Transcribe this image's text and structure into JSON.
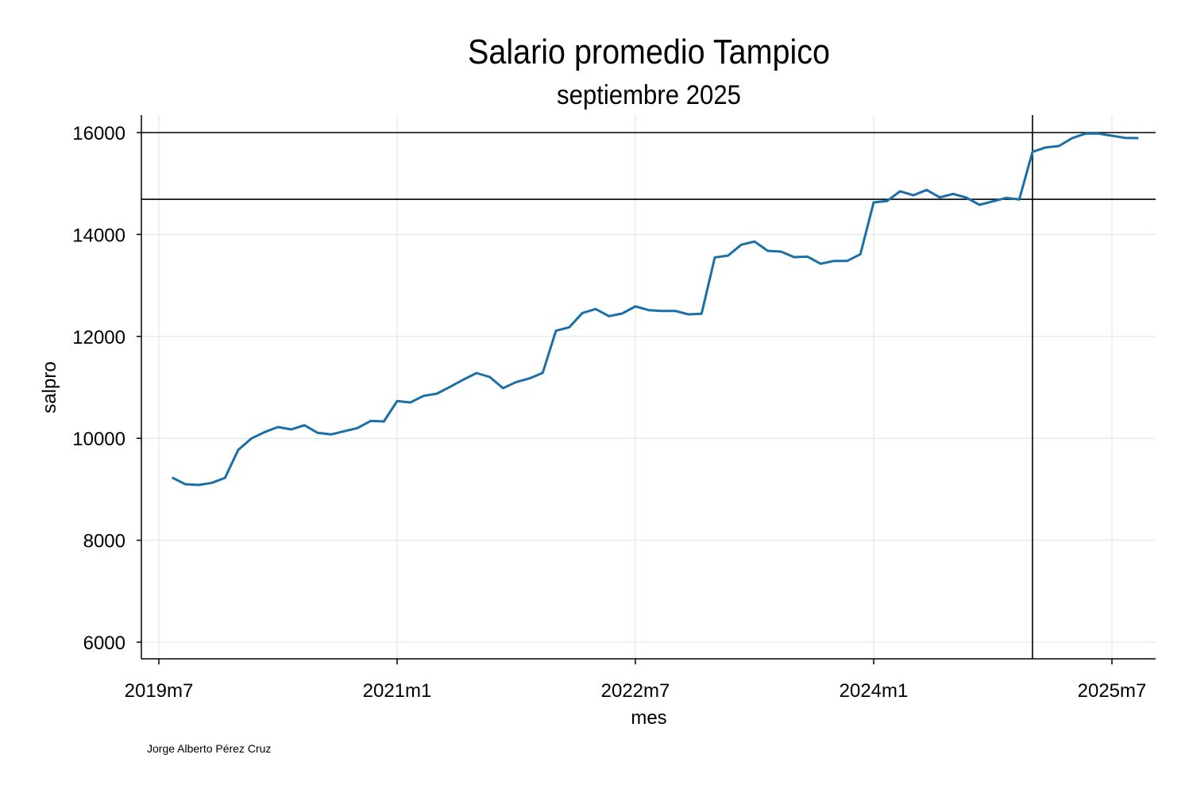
{
  "chart_data": {
    "type": "line",
    "title": "Salario promedio Tampico",
    "subtitle": "septiembre 2025",
    "xlabel": "mes",
    "ylabel": "salpro",
    "note": "Jorge Alberto Pérez Cruz",
    "x_start": "2019m8",
    "x_ticks": [
      "2019m7",
      "2021m1",
      "2022m7",
      "2024m1",
      "2025m7"
    ],
    "y_ticks": [
      6000,
      8000,
      10000,
      12000,
      14000,
      16000
    ],
    "ylim": [
      5700,
      16350
    ],
    "grid": true,
    "line_color": "#1a6fa8",
    "reference_lines": {
      "horizontal": [
        16000,
        14690
      ],
      "vertical": [
        "2025m1"
      ]
    },
    "series": [
      {
        "x": [
          "2019m8",
          "2019m9",
          "2019m10",
          "2019m11",
          "2019m12",
          "2020m1",
          "2020m2",
          "2020m3",
          "2020m4",
          "2020m5",
          "2020m6",
          "2020m7",
          "2020m8",
          "2020m9",
          "2020m10",
          "2020m11",
          "2020m12",
          "2021m1",
          "2021m2",
          "2021m3",
          "2021m4",
          "2021m5",
          "2021m6",
          "2021m7",
          "2021m8",
          "2021m9",
          "2021m10",
          "2021m11",
          "2021m12",
          "2022m1",
          "2022m2",
          "2022m3",
          "2022m4",
          "2022m5",
          "2022m6",
          "2022m7",
          "2022m8",
          "2022m9",
          "2022m10",
          "2022m11",
          "2022m12",
          "2023m1",
          "2023m2",
          "2023m3",
          "2023m4",
          "2023m5",
          "2023m6",
          "2023m7",
          "2023m8",
          "2023m9",
          "2023m10",
          "2023m11",
          "2023m12",
          "2024m1",
          "2024m2",
          "2024m3",
          "2024m4",
          "2024m5",
          "2024m6",
          "2024m7",
          "2024m8",
          "2024m9",
          "2024m10",
          "2024m11",
          "2024m12",
          "2025m1",
          "2025m2",
          "2025m3",
          "2025m4",
          "2025m5",
          "2025m6",
          "2025m7",
          "2025m8",
          "2025m9"
        ],
        "values": [
          9229,
          9100,
          9084,
          9126,
          9225,
          9774,
          9998,
          10123,
          10221,
          10175,
          10257,
          10107,
          10076,
          10139,
          10201,
          10341,
          10330,
          10730,
          10704,
          10834,
          10875,
          11011,
          11151,
          11280,
          11203,
          10985,
          11104,
          11176,
          11285,
          12111,
          12179,
          12460,
          12538,
          12397,
          12449,
          12589,
          12516,
          12500,
          12500,
          12433,
          12444,
          13550,
          13586,
          13799,
          13861,
          13679,
          13664,
          13555,
          13565,
          13425,
          13482,
          13482,
          13612,
          14629,
          14656,
          14847,
          14770,
          14874,
          14728,
          14796,
          14723,
          14583,
          14650,
          14718,
          14687,
          15621,
          15709,
          15735,
          15891,
          15979,
          15979,
          15938,
          15896,
          15891
        ]
      }
    ]
  }
}
